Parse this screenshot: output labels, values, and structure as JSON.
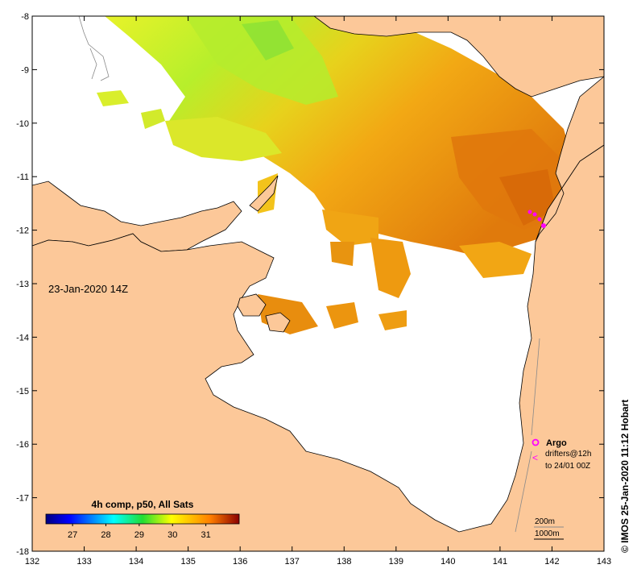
{
  "map": {
    "date_label": "23-Jan-2020 14Z",
    "colorbar": {
      "title": "4h comp, p50, All Sats",
      "ticks": [
        "27",
        "28",
        "29",
        "30",
        "31"
      ],
      "range": [
        26.2,
        32.0
      ],
      "colormap": "jet"
    },
    "lon_ticks": [
      "132",
      "133",
      "134",
      "135",
      "136",
      "137",
      "138",
      "139",
      "140",
      "141",
      "142",
      "143"
    ],
    "lat_ticks": [
      "-8",
      "-9",
      "-10",
      "-11",
      "-12",
      "-13",
      "-14",
      "-15",
      "-16",
      "-17",
      "-18"
    ],
    "lon_range": [
      132,
      143
    ],
    "lat_range": [
      -8,
      -18
    ],
    "legend": {
      "argo_label": "Argo",
      "drifters_line1": "drifters@12h",
      "drifters_line2": "to 24/01 00Z",
      "contour_200": "200m",
      "contour_1000": "1000m",
      "argo_color": "#ff00ff"
    },
    "credit": "© IMOS 25-Jan-2020 11:12 Hobart",
    "colors": {
      "land": "#fcc899",
      "frame": "#000000",
      "bathy": "#8a8a8a"
    }
  }
}
